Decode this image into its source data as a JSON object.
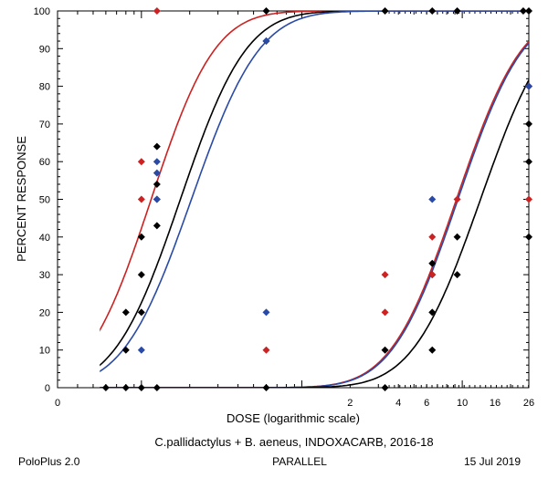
{
  "chart_data": {
    "type": "scatter",
    "title": "C.pallidactylus + B. aeneus, INDOXACARB, 2016-18",
    "xlabel": "DOSE  (logarithmic scale)",
    "ylabel": "PERCENT  RESPONSE",
    "xscale": "log",
    "xlim": [
      0.03,
      26
    ],
    "ylim": [
      0,
      100
    ],
    "y_ticks": [
      0,
      10,
      20,
      30,
      40,
      50,
      60,
      70,
      80,
      90,
      100
    ],
    "y_tick_labels": [
      "0",
      "10",
      "20",
      "30",
      "40",
      "50",
      "60",
      "70",
      "80",
      "90",
      "100"
    ],
    "x_ticks": [
      2,
      4,
      6,
      10,
      16,
      26
    ],
    "x_tick_labels": [
      "2",
      "4",
      "6",
      "10",
      "16",
      "26"
    ],
    "x_origin_label": "0",
    "curves": [
      {
        "name": "red-curve-1",
        "color": "#cc2222",
        "ld50": 0.115,
        "slope": 3.2
      },
      {
        "name": "black-curve-1",
        "color": "#000000",
        "ld50": 0.175,
        "slope": 3.1
      },
      {
        "name": "blue-curve-1",
        "color": "#2a4aa6",
        "ld50": 0.205,
        "slope": 3.0
      },
      {
        "name": "red-curve-2",
        "color": "#cc2222",
        "ld50": 9.2,
        "slope": 3.1
      },
      {
        "name": "blue-curve-2",
        "color": "#2a4aa6",
        "ld50": 9.4,
        "slope": 3.1
      },
      {
        "name": "black-curve-2",
        "color": "#000000",
        "ld50": 13.0,
        "slope": 3.0
      }
    ],
    "series": [
      {
        "name": "black",
        "color": "#000000",
        "points": [
          [
            0.06,
            0
          ],
          [
            0.08,
            0
          ],
          [
            0.08,
            20
          ],
          [
            0.08,
            10
          ],
          [
            0.1,
            0
          ],
          [
            0.1,
            20
          ],
          [
            0.1,
            30
          ],
          [
            0.1,
            40
          ],
          [
            0.125,
            0
          ],
          [
            0.125,
            43
          ],
          [
            0.125,
            50
          ],
          [
            0.125,
            54
          ],
          [
            0.125,
            64
          ],
          [
            0.6,
            0
          ],
          [
            0.6,
            92
          ],
          [
            0.6,
            100
          ],
          [
            3.3,
            0
          ],
          [
            3.3,
            10
          ],
          [
            3.3,
            100
          ],
          [
            6.5,
            10
          ],
          [
            6.5,
            20
          ],
          [
            6.5,
            30
          ],
          [
            6.5,
            33
          ],
          [
            6.5,
            100
          ],
          [
            9.3,
            30
          ],
          [
            9.3,
            40
          ],
          [
            9.3,
            100
          ],
          [
            24,
            100
          ],
          [
            26,
            40
          ],
          [
            26,
            60
          ],
          [
            26,
            70
          ],
          [
            26,
            80
          ],
          [
            26,
            100
          ]
        ]
      },
      {
        "name": "red",
        "color": "#cc2222",
        "points": [
          [
            0.1,
            50
          ],
          [
            0.1,
            60
          ],
          [
            0.125,
            100
          ],
          [
            0.6,
            10
          ],
          [
            3.3,
            20
          ],
          [
            3.3,
            30
          ],
          [
            6.5,
            30
          ],
          [
            6.5,
            40
          ],
          [
            9.3,
            50
          ],
          [
            26,
            50
          ],
          [
            26,
            80
          ]
        ]
      },
      {
        "name": "blue",
        "color": "#2a4aa6",
        "points": [
          [
            0.1,
            10
          ],
          [
            0.125,
            50
          ],
          [
            0.125,
            57
          ],
          [
            0.125,
            60
          ],
          [
            0.6,
            20
          ],
          [
            0.6,
            92
          ],
          [
            6.5,
            50
          ],
          [
            26,
            80
          ]
        ]
      }
    ]
  },
  "footer": {
    "program": "PoloPlus 2.0",
    "model": "PARALLEL",
    "date": "15 Jul 2019"
  }
}
